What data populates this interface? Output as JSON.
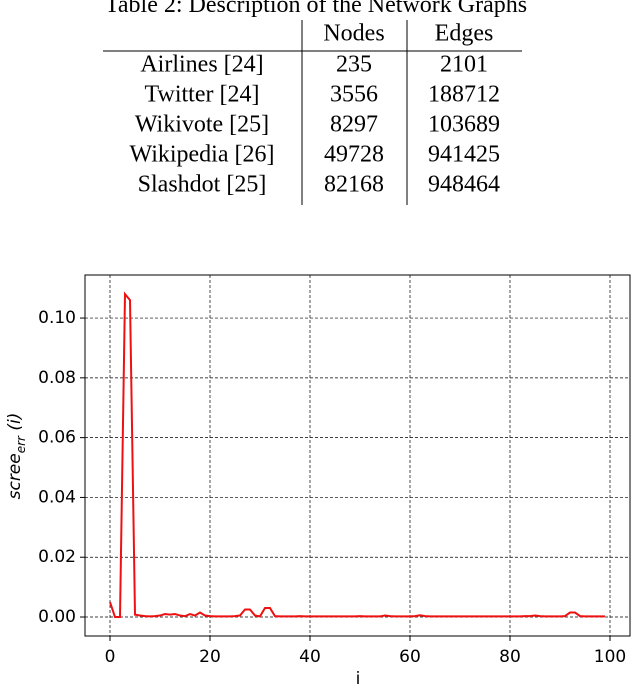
{
  "table": {
    "title": "Table 2: Description of the Network Graphs",
    "header": [
      "Nodes",
      "Edges"
    ],
    "rows": [
      [
        "Airlines [24]",
        "235",
        "2101"
      ],
      [
        "Twitter [24]",
        "3556",
        "188712"
      ],
      [
        "Wikivote [25]",
        "8297",
        "103689"
      ],
      [
        "Wikipedia [26]",
        "49728",
        "941425"
      ],
      [
        "Slashdot [25]",
        "82168",
        "948464"
      ]
    ]
  },
  "chart_data": {
    "type": "line",
    "xlabel": "i",
    "ylabel": "scree",
    "ylabel_sub": "err",
    "ylabel_suffix": "(i)",
    "x": [
      0,
      1,
      2,
      3,
      4,
      5,
      6,
      7,
      8,
      9,
      10,
      11,
      12,
      13,
      14,
      15,
      16,
      17,
      18,
      19,
      20,
      21,
      22,
      23,
      24,
      25,
      26,
      27,
      28,
      29,
      30,
      31,
      32,
      33,
      34,
      35,
      36,
      37,
      38,
      39,
      40,
      41,
      42,
      43,
      44,
      45,
      46,
      47,
      48,
      49,
      50,
      51,
      52,
      53,
      54,
      55,
      56,
      57,
      58,
      59,
      60,
      61,
      62,
      63,
      64,
      65,
      66,
      67,
      68,
      69,
      70,
      71,
      72,
      73,
      74,
      75,
      76,
      77,
      78,
      79,
      80,
      81,
      82,
      83,
      84,
      85,
      86,
      87,
      88,
      89,
      90,
      91,
      92,
      93,
      94,
      95,
      96,
      97,
      98,
      99
    ],
    "series": [
      {
        "name": "scree_err",
        "color": "#ee1111",
        "values": [
          0.005,
          0.0,
          0.0,
          0.108,
          0.106,
          0.0008,
          0.0005,
          0.0003,
          0.0002,
          0.0003,
          0.0005,
          0.001,
          0.0008,
          0.001,
          0.0005,
          0.0003,
          0.001,
          0.0005,
          0.0015,
          0.0005,
          0.0003,
          0.0002,
          0.0002,
          0.0002,
          0.0002,
          0.0003,
          0.0005,
          0.0025,
          0.0025,
          0.0005,
          0.0002,
          0.003,
          0.003,
          0.0003,
          0.0002,
          0.0002,
          0.0002,
          0.0002,
          0.0003,
          0.0002,
          0.0002,
          0.0002,
          0.0002,
          0.0002,
          0.0002,
          0.0002,
          0.0002,
          0.0002,
          0.0002,
          0.0002,
          0.0003,
          0.0002,
          0.0002,
          0.0002,
          0.0002,
          0.0005,
          0.0003,
          0.0002,
          0.0002,
          0.0002,
          0.0002,
          0.0003,
          0.0006,
          0.0003,
          0.0002,
          0.0002,
          0.0002,
          0.0002,
          0.0002,
          0.0002,
          0.0002,
          0.0002,
          0.0002,
          0.0002,
          0.0002,
          0.0002,
          0.0002,
          0.0002,
          0.0002,
          0.0002,
          0.0002,
          0.0002,
          0.0002,
          0.0003,
          0.0003,
          0.0005,
          0.0003,
          0.0002,
          0.0002,
          0.0002,
          0.0002,
          0.0003,
          0.0015,
          0.0015,
          0.0003,
          0.0002,
          0.0002,
          0.0002,
          0.0002,
          0.0002
        ]
      }
    ],
    "xlim": [
      -5,
      104
    ],
    "ylim": [
      -0.00635,
      0.1144
    ],
    "xticks": [
      0,
      20,
      40,
      60,
      80,
      100
    ],
    "yticks": [
      {
        "value": 0,
        "label": "0.00"
      },
      {
        "value": 0.02,
        "label": "0.02"
      },
      {
        "value": 0.04,
        "label": "0.04"
      },
      {
        "value": 0.06,
        "label": "0.06"
      },
      {
        "value": 0.08,
        "label": "0.08"
      },
      {
        "value": 0.1,
        "label": "0.10"
      }
    ],
    "grid": true
  }
}
